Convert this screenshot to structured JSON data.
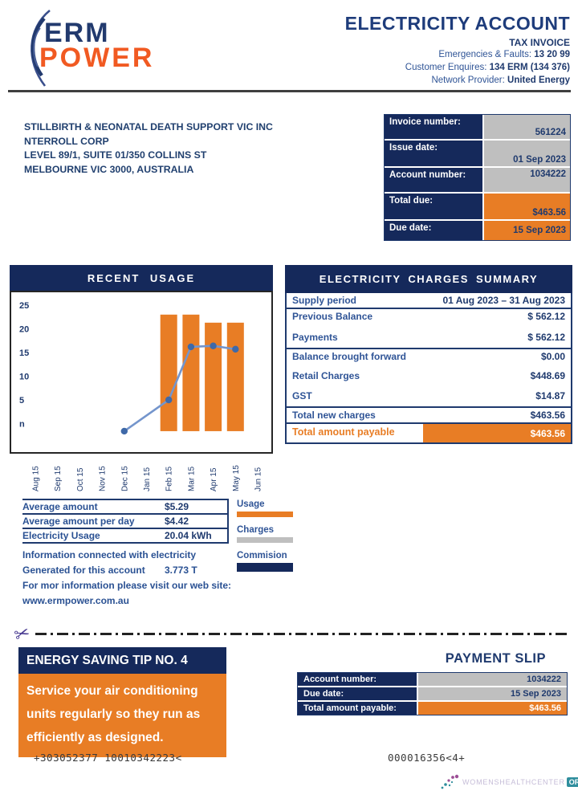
{
  "colors": {
    "navy": "#15295B",
    "text_navy": "#1F3A6E",
    "label_blue": "#2F5496",
    "orange": "#E87D25",
    "logo_orange": "#F15A22",
    "cell_gray": "#BFBFBF",
    "line_blue": "#7495CC",
    "dot_blue": "#3F69A8",
    "watermark_teal": "#2F8E9D",
    "watermark_lavender": "#C6BDD8"
  },
  "header": {
    "logo_line1": "ERM",
    "logo_line2": "POWER",
    "title": "ELECTRICITY ACCOUNT",
    "subtitle": "TAX INVOICE",
    "contacts": [
      {
        "label": "Emergencies & Faults:",
        "value": "13 20 99"
      },
      {
        "label": "Customer Enquires:",
        "value": "134 ERM (134 376)"
      },
      {
        "label": "Network Provider:",
        "value": "United Energy"
      }
    ]
  },
  "recipient": {
    "lines": [
      "STILLBIRTH & NEONATAL DEATH SUPPORT VIC INC",
      "NTERROLL CORP",
      "LEVEL 89/1, SUITE 01/350 COLLINS ST",
      "MELBOURNE VIC 3000, AUSTRALIA"
    ]
  },
  "invoice_box": {
    "rows": [
      {
        "label": "Invoice number:",
        "value": "561224"
      },
      {
        "label": "Issue date:",
        "value": "01 Sep 2023"
      },
      {
        "label": "Account number:",
        "value": "1034222"
      },
      {
        "label": "Total due:",
        "value": "$463.56"
      },
      {
        "label": "Due date:",
        "value": "15 Sep 2023"
      }
    ]
  },
  "usage_chart": {
    "title": "RECENT USAGE"
  },
  "chart_data": {
    "type": "bar",
    "title": "RECENT USAGE",
    "categories": [
      "Aug 15",
      "Sep 15",
      "Oct 15",
      "Nov 15",
      "Dec 15",
      "Jan 15",
      "Feb 15",
      "Mar 15",
      "Apr 15",
      "May 15",
      "Jun 15"
    ],
    "series": [
      {
        "name": "Usage",
        "type": "bar",
        "color": "#E87D25",
        "values": [
          null,
          null,
          null,
          null,
          null,
          null,
          23,
          23,
          21.3,
          21.3,
          null
        ]
      },
      {
        "name": "Trend",
        "type": "line",
        "color": "#7495CC",
        "values": [
          null,
          null,
          null,
          null,
          -1.6,
          null,
          5,
          16.2,
          16.4,
          15.7,
          null
        ]
      }
    ],
    "ylim": [
      -3,
      27
    ],
    "yticks": [
      25,
      20,
      15,
      10,
      5,
      "n"
    ],
    "grid": false,
    "legend_position": "below-right"
  },
  "charges_summary": {
    "title": "ELECTRICITY CHARGES SUMMARY",
    "rows": [
      {
        "label": "Supply period",
        "value": "01 Aug 2023 – 31 Aug 2023"
      },
      {
        "label": "Previous Balance",
        "value": "$ 562.12"
      },
      {
        "label": "Payments",
        "value": "$ 562.12"
      },
      {
        "label": "Balance brought forward",
        "value": "$0.00"
      },
      {
        "label": "Retail Charges",
        "value": "$448.69"
      },
      {
        "label": "GST",
        "value": "$14.87"
      },
      {
        "label": "Total new charges",
        "value": "$463.56"
      },
      {
        "label": "Total amount payable",
        "value": "$463.56"
      }
    ]
  },
  "averages": {
    "rows": [
      {
        "label": "Average amount",
        "value": "$5.29"
      },
      {
        "label": "Average amount per day",
        "value": "$4.42"
      },
      {
        "label": "Electricity Usage",
        "value": "20.04 kWh"
      }
    ]
  },
  "info": {
    "line1": "Information connected with electricity",
    "line2_label": "Generated for this account",
    "line2_value": "3.773 T",
    "line3": "For mor information please visit our web site:",
    "line4": "www.ermpower.com.au"
  },
  "legend": {
    "items": [
      {
        "label": "Usage",
        "color": "orange"
      },
      {
        "label": "Charges",
        "color": "gray"
      },
      {
        "label": "Commision",
        "color": "navy"
      }
    ]
  },
  "icons": {
    "scissors": "✂"
  },
  "tip": {
    "header": "ENERGY SAVING TIP NO. 4",
    "body": "Service your air conditioning units regularly so they run as efficiently as designed."
  },
  "payment_slip": {
    "title": "PAYMENT SLIP",
    "rows": [
      {
        "label": "Account number:",
        "value": "1034222"
      },
      {
        "label": "Due date:",
        "value": "15 Sep 2023"
      },
      {
        "label": "Total amount payable:",
        "value": "$463.56"
      }
    ]
  },
  "codes": {
    "left": "+303052377  10010342223<",
    "right": "000016356<4+"
  },
  "watermark": {
    "text": "WOMENSHEALTHCENTER",
    "suffix": "ORG"
  }
}
